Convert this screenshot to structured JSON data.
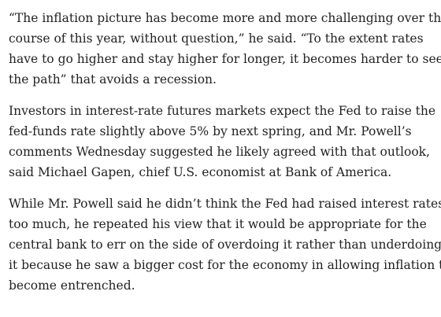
{
  "article": {
    "paragraphs": [
      {
        "lines": [
          "“The inflation picture has become more and more challenging over the",
          "course of this year, without question,” he said. “To the extent rates",
          "have to go higher and stay higher for longer, it becomes harder to see",
          "the path” that avoids a recession."
        ]
      },
      {
        "lines": [
          "Investors in interest-rate futures markets expect the Fed to raise the",
          "fed-funds rate slightly above 5% by next spring, and Mr. Powell’s",
          "comments Wednesday suggested he likely agreed with that outlook,",
          "said Michael Gapen, chief U.S. economist at Bank of America."
        ]
      },
      {
        "lines": [
          "While Mr. Powell said he didn’t think the Fed had raised interest rates",
          "too much, he repeated his view that it would be appropriate for the",
          "central bank to err on the side of overdoing it rather than underdoing",
          "it because he saw a bigger cost for the economy in allowing inflation to",
          "become entrenched."
        ]
      }
    ]
  }
}
